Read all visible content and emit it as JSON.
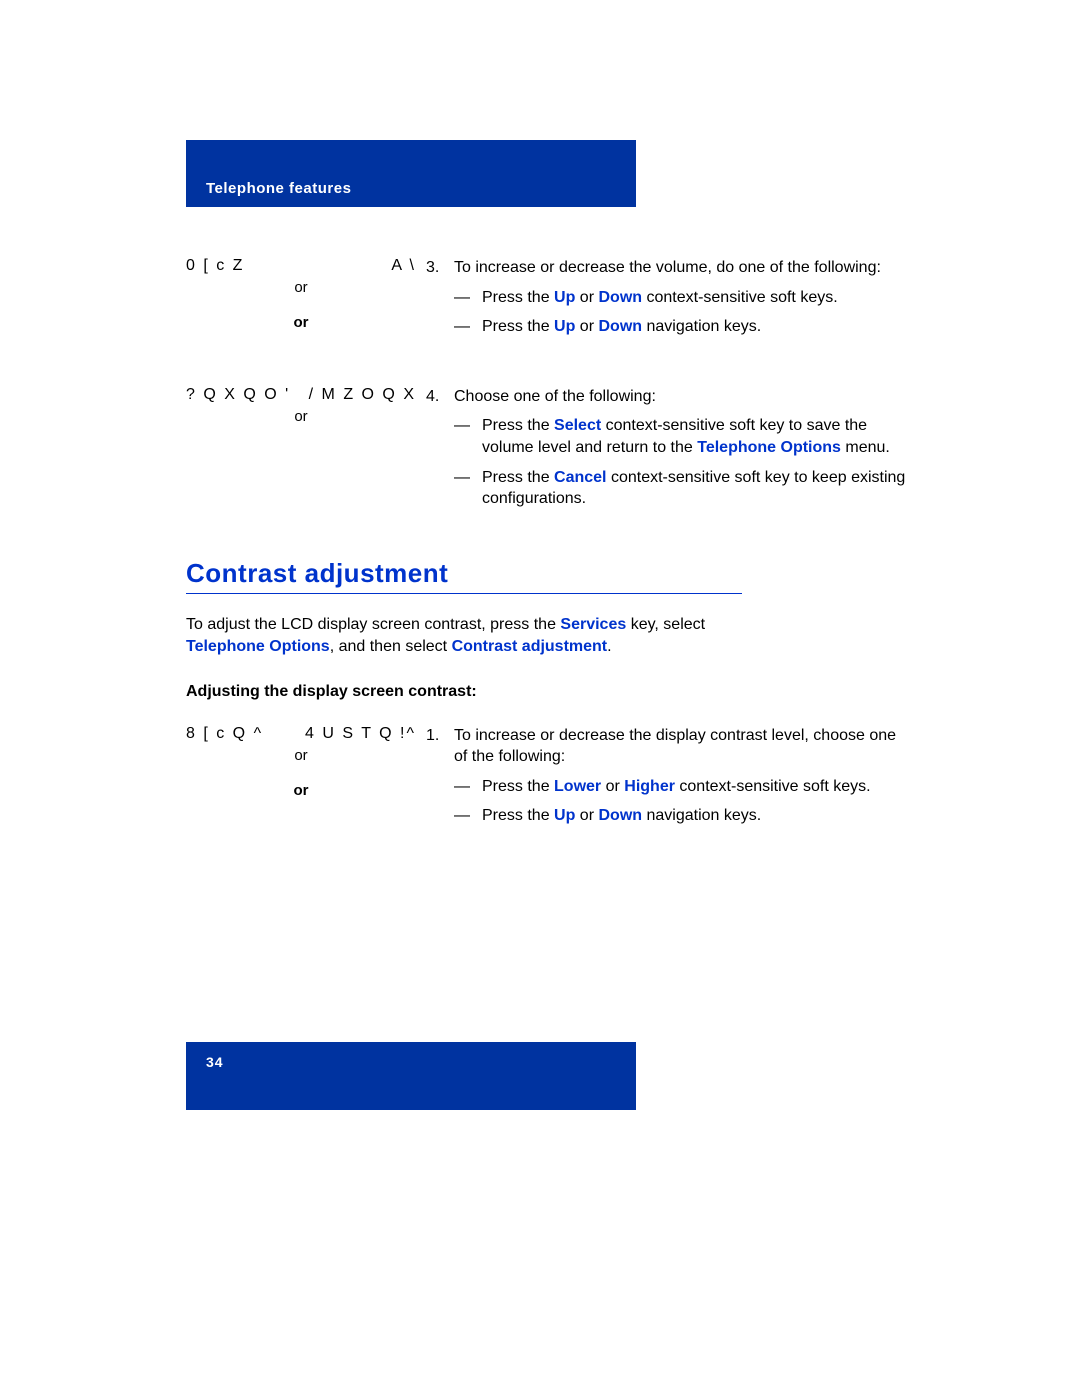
{
  "header": {
    "title": "Telephone features"
  },
  "step3": {
    "left": {
      "key_left": "0 [ c Z",
      "key_right": "A \\",
      "or1": "or",
      "or2": "or"
    },
    "num": "3.",
    "intro": "To increase or decrease the volume, do one of the following:",
    "dash": "—",
    "sub1_a": "Press the ",
    "sub1_up": "Up",
    "sub1_b": " or ",
    "sub1_down": "Down",
    "sub1_c": " context-sensitive soft keys.",
    "sub2_a": "Press the ",
    "sub2_up": "Up",
    "sub2_b": " or ",
    "sub2_down": "Down",
    "sub2_c": " navigation keys."
  },
  "step4": {
    "left": {
      "key_left": "? Q X Q O '",
      "key_right": "/ M Z O Q X",
      "or1": "or"
    },
    "num": "4.",
    "intro": "Choose one of the following:",
    "dash": "—",
    "sub1_a": "Press the ",
    "sub1_select": "Select",
    "sub1_b": " context-sensitive soft key to save the volume level and return to the ",
    "sub1_topts": "Telephone Options",
    "sub1_c": " menu.",
    "sub2_a": "Press the ",
    "sub2_cancel": "Cancel",
    "sub2_b": " context-sensitive soft key to keep existing configurations."
  },
  "section": {
    "heading": "Contrast adjustment",
    "intro_a": "To adjust the LCD display screen contrast, press the ",
    "intro_services": "Services",
    "intro_b": " key, select ",
    "intro_topts": "Telephone Options",
    "intro_c": ", and then select ",
    "intro_cadj": "Contrast adjustment",
    "intro_d": ".",
    "subheading": "Adjusting the display screen contrast:"
  },
  "step1c": {
    "left": {
      "key_left": "8 [ c Q ^",
      "key_right": "4 U S T Q !^",
      "or1": "or",
      "or2": "or"
    },
    "num": "1.",
    "intro": "To increase or decrease the display contrast level, choose one of the following:",
    "dash": "—",
    "sub1_a": "Press the ",
    "sub1_lower": "Lower",
    "sub1_b": " or ",
    "sub1_higher": "Higher",
    "sub1_c": " context-sensitive soft keys.",
    "sub2_a": "Press the ",
    "sub2_up": "Up",
    "sub2_b": " or ",
    "sub2_down": "Down",
    "sub2_c": " navigation keys."
  },
  "footer": {
    "page": "34"
  }
}
